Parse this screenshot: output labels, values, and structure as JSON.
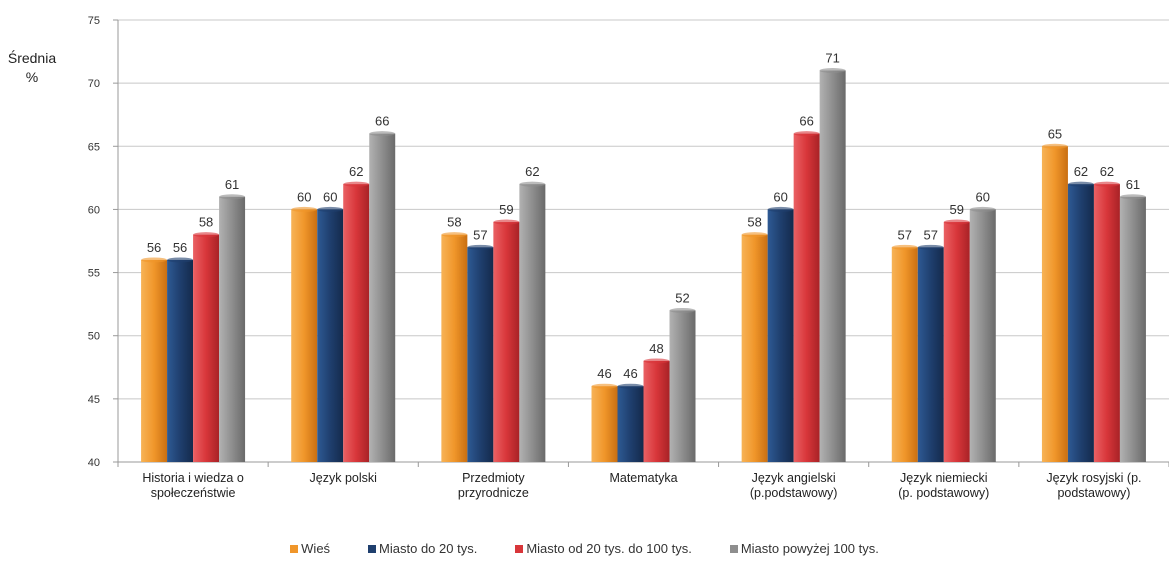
{
  "chart_data": {
    "type": "bar",
    "title": "",
    "xlabel": "",
    "ylabel_line1": "Średnia",
    "ylabel_line2": "%",
    "ylim": [
      40,
      75
    ],
    "yticks": [
      40,
      45,
      50,
      55,
      60,
      65,
      70,
      75
    ],
    "grid": true,
    "legend_position": "bottom",
    "categories": [
      [
        "Historia i wiedza o",
        "społeczeństwie"
      ],
      [
        "Język polski"
      ],
      [
        "Przedmioty",
        "przyrodnicze"
      ],
      [
        "Matematyka"
      ],
      [
        "Język angielski",
        "(p.podstawowy)"
      ],
      [
        "Język niemiecki",
        "(p. podstawowy)"
      ],
      [
        "Język rosyjski (p.",
        "podstawowy)"
      ]
    ],
    "series": [
      {
        "name": "Wieś",
        "color": "#f0962a",
        "values": [
          56,
          60,
          58,
          46,
          58,
          57,
          65
        ]
      },
      {
        "name": "Miasto do 20 tys.",
        "color": "#1f3f6e",
        "values": [
          56,
          60,
          57,
          46,
          60,
          57,
          62
        ]
      },
      {
        "name": "Miasto od 20 tys. do 100 tys.",
        "color": "#d8363a",
        "values": [
          58,
          62,
          59,
          48,
          66,
          59,
          62
        ]
      },
      {
        "name": "Miasto powyżej 100 tys.",
        "color": "#8e8e8e",
        "values": [
          61,
          66,
          62,
          52,
          71,
          60,
          61
        ]
      }
    ]
  }
}
